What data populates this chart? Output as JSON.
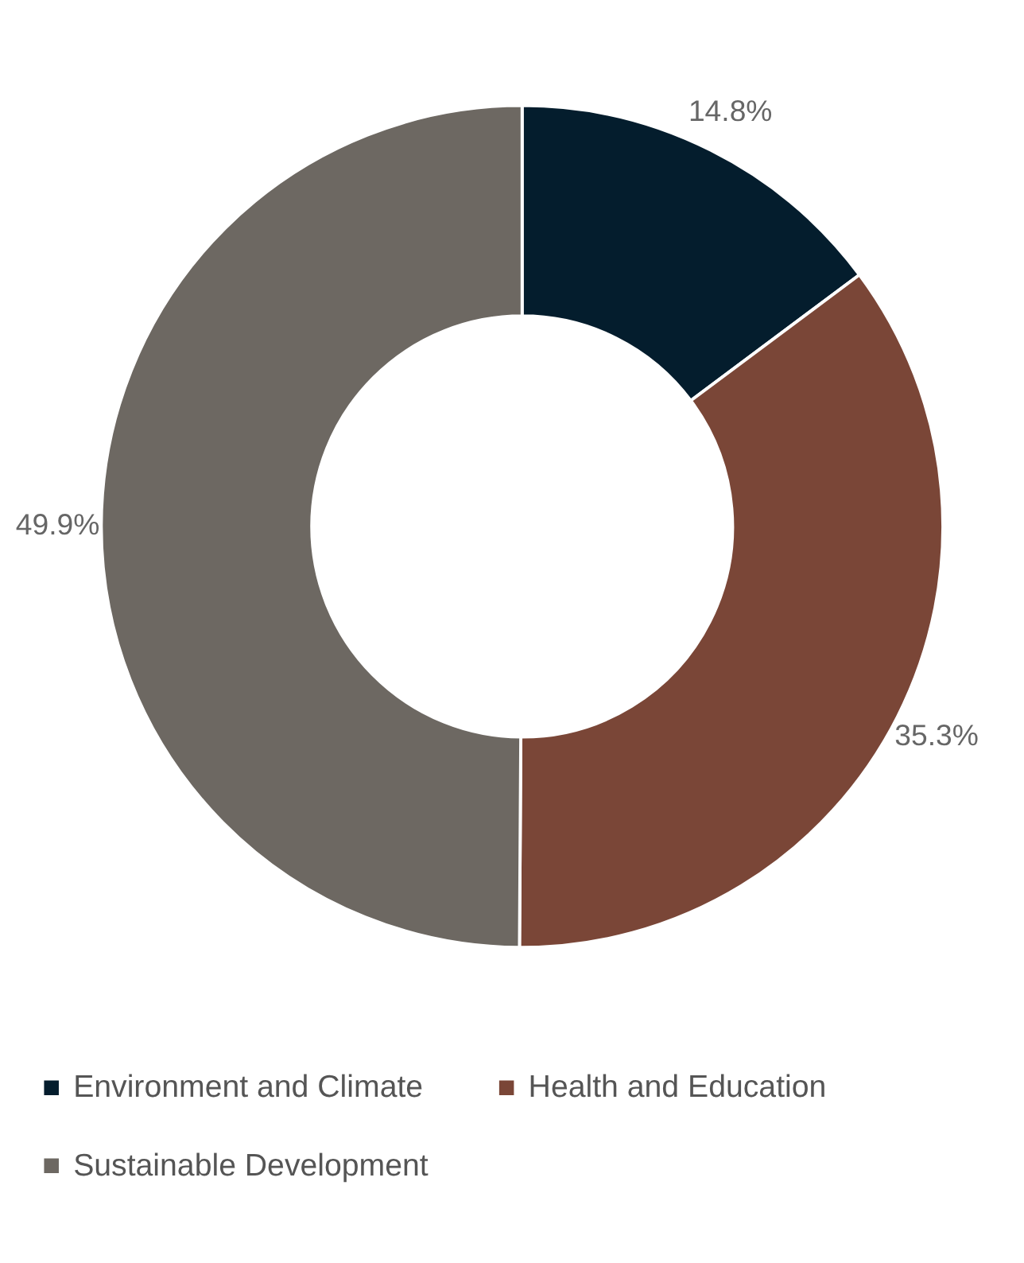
{
  "chart_data": {
    "type": "donut",
    "categories": [
      "Environment and Climate",
      "Health and Education",
      "Sustainable Development"
    ],
    "values": [
      14.8,
      35.3,
      49.9
    ],
    "colors": [
      "#041d2d",
      "#7a4637",
      "#6d6862"
    ],
    "value_labels": [
      "14.8%",
      "35.3%",
      "49.9%"
    ],
    "legend": "bottom"
  }
}
